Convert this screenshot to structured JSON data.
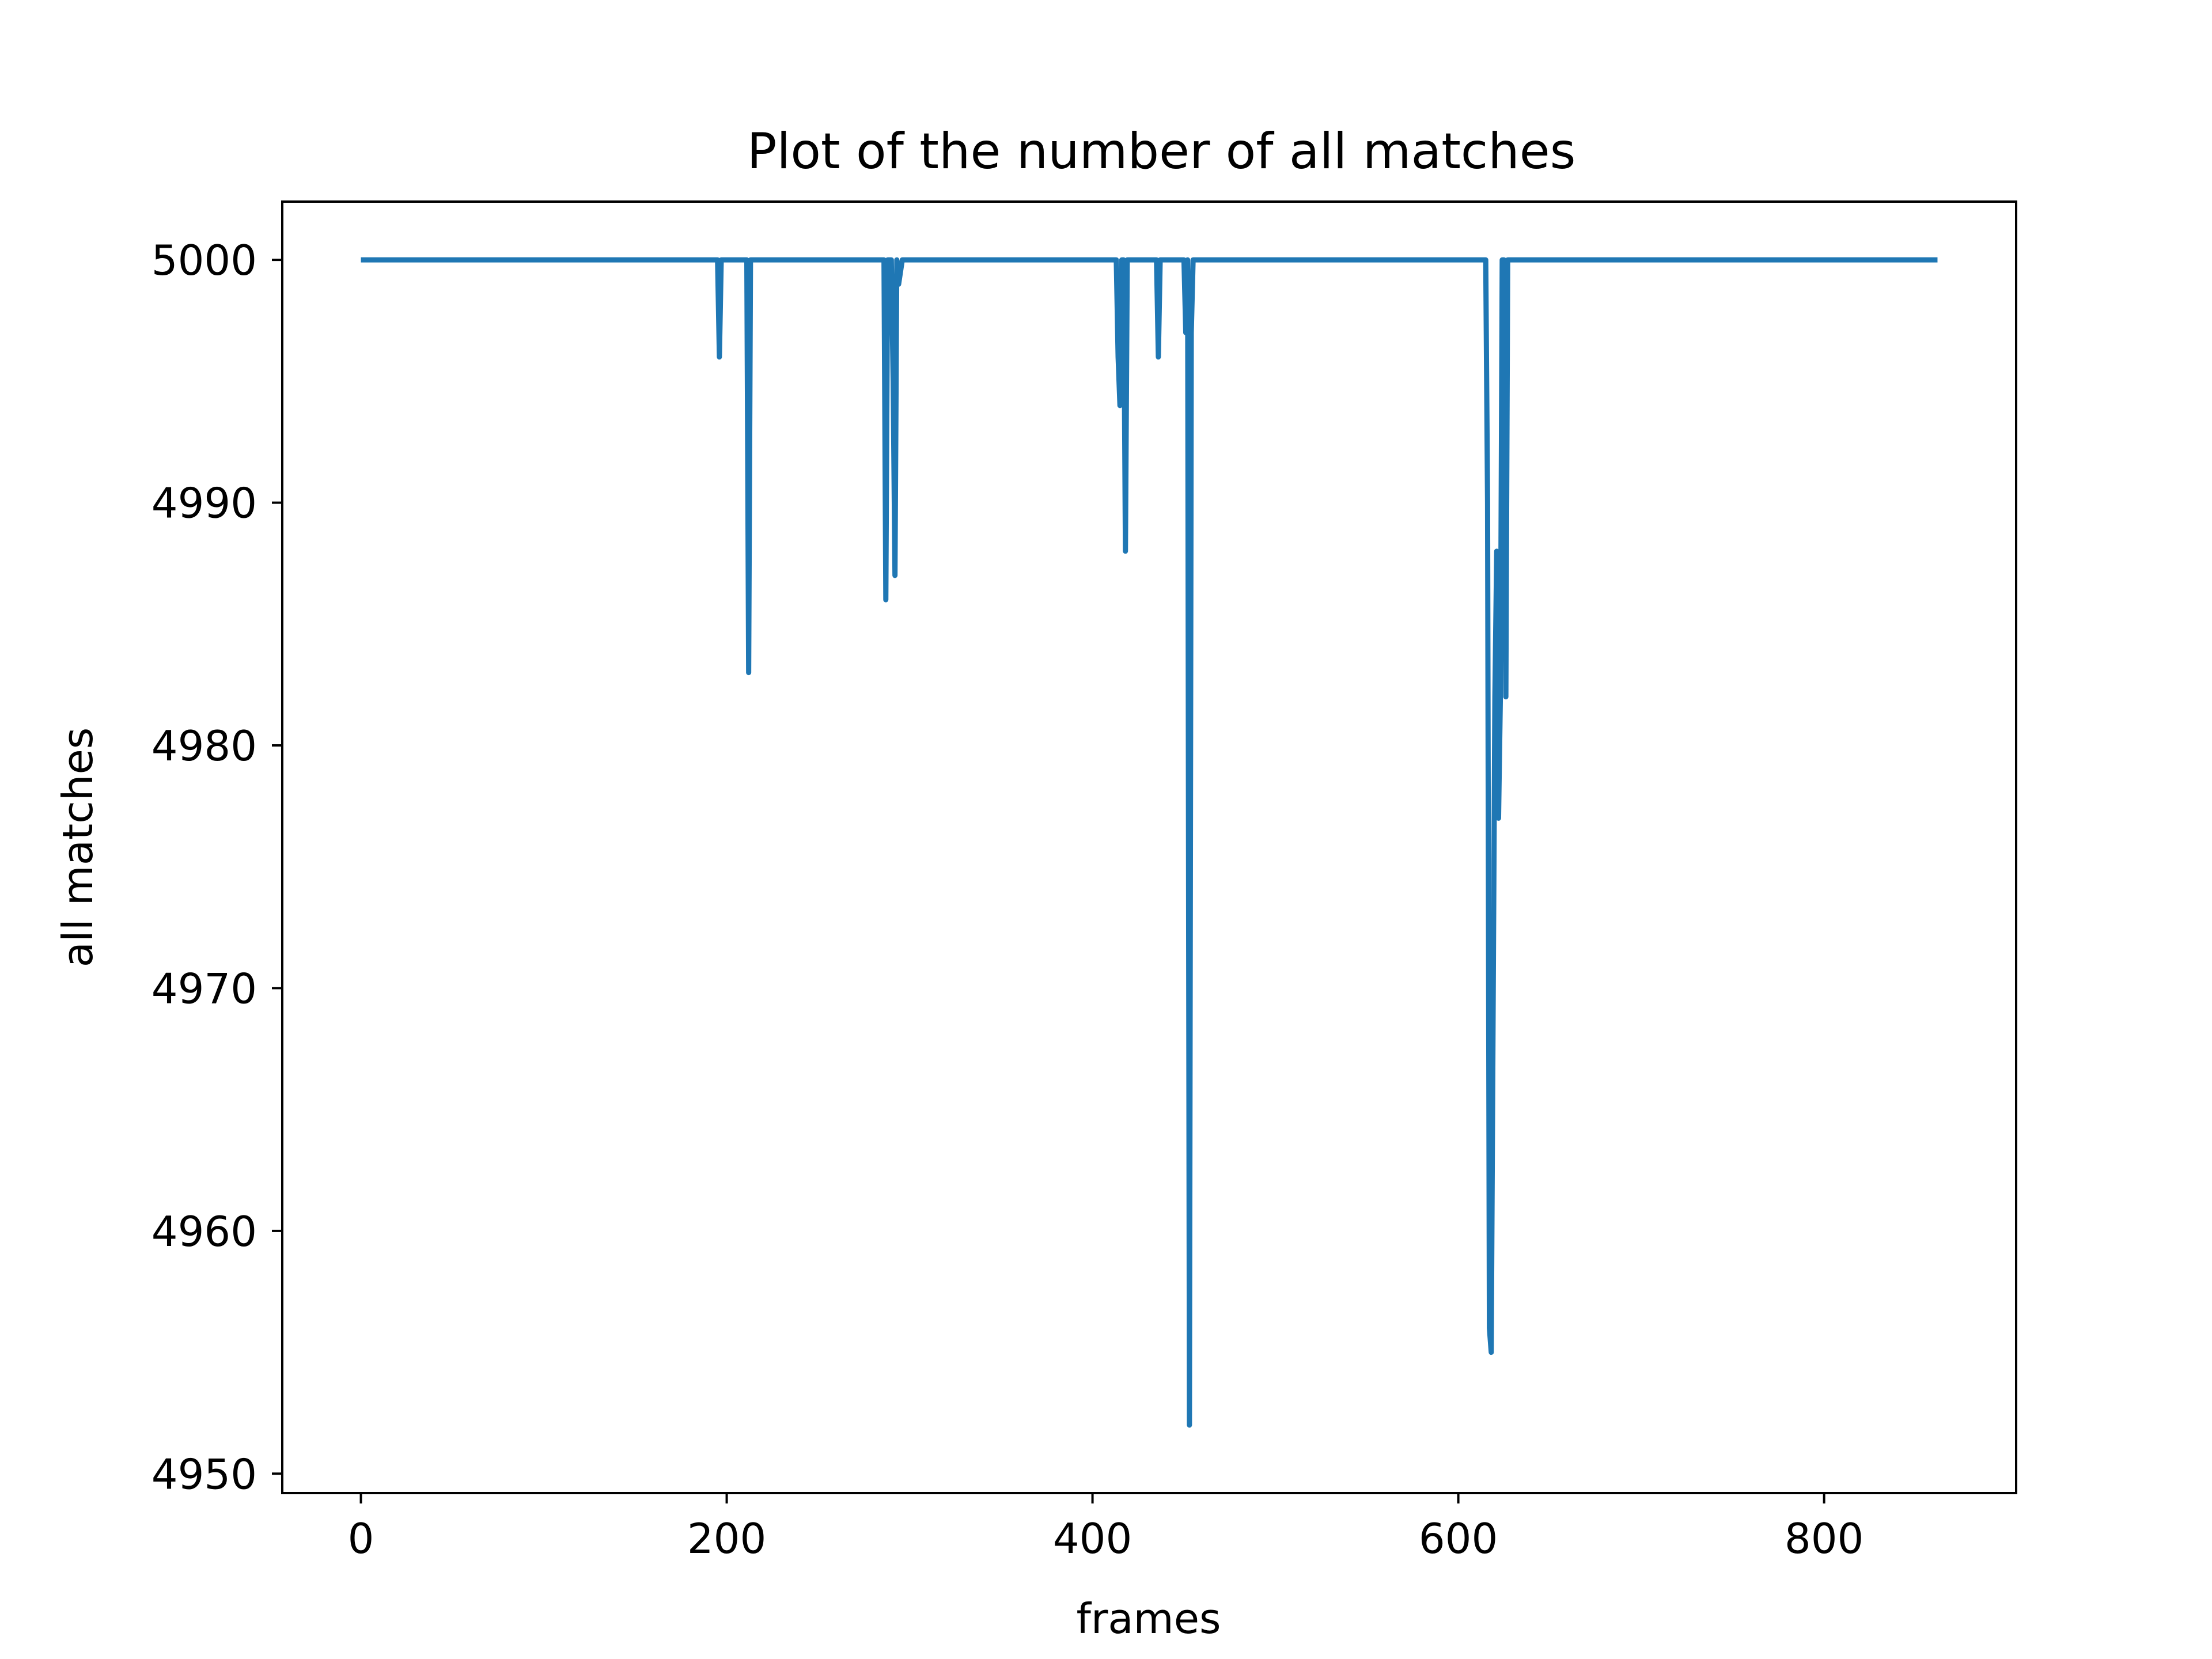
{
  "chart_data": {
    "type": "line",
    "title": "Plot of the number of all matches",
    "xlabel": "frames",
    "ylabel": "all matches",
    "xlim": [
      -43,
      905
    ],
    "ylim": [
      4949.2,
      5002.4
    ],
    "xticks": [
      0,
      200,
      400,
      600,
      800
    ],
    "yticks": [
      4950,
      4960,
      4970,
      4980,
      4990,
      5000
    ],
    "grid": false,
    "legend": "none",
    "colors": {
      "line": "#1f77b4",
      "axes": "#000000",
      "background": "#ffffff"
    },
    "series": [
      {
        "x": [
          0,
          194,
          195,
          196,
          197,
          210,
          211,
          212,
          213,
          285,
          286,
          287,
          288,
          290,
          291,
          292,
          293,
          294,
          296,
          297,
          412,
          413,
          414,
          415,
          416,
          417,
          418,
          419,
          420,
          434,
          435,
          436,
          437,
          449,
          450,
          451,
          452,
          453,
          454,
          455,
          456,
          614,
          615,
          616,
          617,
          618,
          620,
          621,
          622,
          623,
          624,
          625,
          626,
          627,
          628,
          862
        ],
        "y": [
          5000,
          5000,
          5000,
          4996,
          5000,
          5000,
          5000,
          4983,
          5000,
          5000,
          5000,
          4986,
          5000,
          5000,
          4995,
          4987,
          5000,
          4999,
          5000,
          5000,
          5000,
          5000,
          4996,
          4994,
          5000,
          5000,
          4988,
          5000,
          5000,
          5000,
          5000,
          4996,
          5000,
          5000,
          5000,
          4997,
          5000,
          4952,
          4997,
          5000,
          5000,
          5000,
          5000,
          4990,
          4956,
          4955,
          4982,
          4988,
          4977,
          4982,
          5000,
          5000,
          4982,
          5000,
          5000,
          5000
        ]
      }
    ]
  }
}
